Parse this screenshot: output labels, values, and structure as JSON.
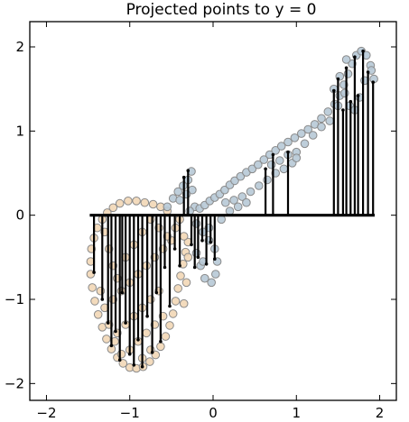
{
  "chart_data": {
    "type": "scatter",
    "title": "Projected points to y = 0",
    "xlabel": "",
    "ylabel": "",
    "xlim": [
      -2.2,
      2.2
    ],
    "ylim": [
      -2.2,
      2.3
    ],
    "x_ticks": [
      -2,
      -1,
      0,
      1,
      2
    ],
    "y_ticks": [
      -2,
      -1,
      0,
      1,
      2
    ],
    "x_tick_labels": [
      "−2",
      "−1",
      "0",
      "1",
      "2"
    ],
    "y_tick_labels": [
      "−2",
      "−1",
      "0",
      "1",
      "2"
    ],
    "grid": false,
    "projection_line_y": 0,
    "projection_range": [
      -1.48,
      1.94
    ],
    "series": [
      {
        "color": "#f2d7b6",
        "points": [
          [
            -0.55,
            0.05
          ],
          [
            -0.63,
            0.1
          ],
          [
            -0.72,
            0.13
          ],
          [
            -0.82,
            0.15
          ],
          [
            -0.92,
            0.17
          ],
          [
            -1.02,
            0.17
          ],
          [
            -1.12,
            0.14
          ],
          [
            -1.2,
            0.09
          ],
          [
            -1.27,
            0.03
          ],
          [
            -1.33,
            -0.05
          ],
          [
            -1.39,
            -0.15
          ],
          [
            -1.43,
            -0.27
          ],
          [
            -1.46,
            -0.4
          ],
          [
            -1.47,
            -0.55
          ],
          [
            -1.47,
            -0.7
          ],
          [
            -1.45,
            -0.86
          ],
          [
            -1.42,
            -1.02
          ],
          [
            -1.38,
            -1.18
          ],
          [
            -1.33,
            -1.33
          ],
          [
            -1.28,
            -1.47
          ],
          [
            -1.22,
            -1.59
          ],
          [
            -1.15,
            -1.69
          ],
          [
            -1.08,
            -1.76
          ],
          [
            -1.0,
            -1.81
          ],
          [
            -0.92,
            -1.82
          ],
          [
            -0.84,
            -1.8
          ],
          [
            -0.76,
            -1.74
          ],
          [
            -0.69,
            -1.66
          ],
          [
            -0.63,
            -1.56
          ],
          [
            -0.57,
            -1.44
          ],
          [
            -0.52,
            -1.31
          ],
          [
            -0.48,
            -1.17
          ],
          [
            -0.45,
            -1.02
          ],
          [
            -0.42,
            -0.87
          ],
          [
            -0.39,
            -0.72
          ],
          [
            -0.36,
            -0.58
          ],
          [
            -0.33,
            -0.44
          ],
          [
            -0.3,
            -0.32
          ],
          [
            -0.5,
            -0.3
          ],
          [
            -0.6,
            -0.4
          ],
          [
            -0.7,
            -0.5
          ],
          [
            -0.8,
            -0.6
          ],
          [
            -0.9,
            -0.7
          ],
          [
            -1.0,
            -0.8
          ],
          [
            -1.1,
            -0.9
          ],
          [
            -1.2,
            -1.0
          ],
          [
            -0.65,
            -0.9
          ],
          [
            -0.75,
            -1.0
          ],
          [
            -0.85,
            -1.1
          ],
          [
            -0.95,
            -1.2
          ],
          [
            -1.05,
            -1.3
          ],
          [
            -1.15,
            -1.4
          ],
          [
            -0.6,
            -1.2
          ],
          [
            -0.7,
            -1.3
          ],
          [
            -0.8,
            -1.4
          ],
          [
            -0.9,
            -1.5
          ],
          [
            -1.0,
            -1.6
          ],
          [
            -1.1,
            -1.65
          ],
          [
            -0.75,
            -1.6
          ],
          [
            -0.85,
            -1.7
          ],
          [
            -1.3,
            -0.2
          ],
          [
            -1.25,
            -0.4
          ],
          [
            -1.2,
            -0.6
          ],
          [
            -1.15,
            -0.75
          ],
          [
            -1.05,
            -0.5
          ],
          [
            -0.95,
            -0.35
          ],
          [
            -0.85,
            -0.2
          ],
          [
            -0.75,
            -0.05
          ],
          [
            -0.65,
            -0.15
          ],
          [
            -0.55,
            -0.25
          ],
          [
            -0.45,
            -0.15
          ],
          [
            -0.4,
            -0.05
          ],
          [
            -0.35,
            -0.25
          ],
          [
            -0.3,
            -0.5
          ],
          [
            -0.32,
            -0.8
          ],
          [
            -0.35,
            -1.05
          ],
          [
            -1.35,
            -0.9
          ],
          [
            -1.3,
            -1.1
          ],
          [
            -1.25,
            -1.3
          ],
          [
            -1.18,
            -1.5
          ]
        ]
      },
      {
        "color": "#b7c9d6",
        "points": [
          [
            -0.55,
            0.1
          ],
          [
            -0.48,
            0.2
          ],
          [
            -0.42,
            0.28
          ],
          [
            -0.36,
            0.35
          ],
          [
            -0.3,
            0.42
          ],
          [
            -0.26,
            0.52
          ],
          [
            -0.22,
            0.1
          ],
          [
            -0.16,
            0.08
          ],
          [
            -0.1,
            0.12
          ],
          [
            -0.04,
            0.17
          ],
          [
            0.02,
            0.21
          ],
          [
            0.08,
            0.25
          ],
          [
            0.14,
            0.3
          ],
          [
            0.2,
            0.36
          ],
          [
            0.26,
            0.41
          ],
          [
            0.33,
            0.46
          ],
          [
            0.4,
            0.51
          ],
          [
            0.47,
            0.55
          ],
          [
            0.54,
            0.6
          ],
          [
            0.61,
            0.66
          ],
          [
            0.68,
            0.72
          ],
          [
            0.75,
            0.77
          ],
          [
            0.82,
            0.82
          ],
          [
            0.9,
            0.87
          ],
          [
            0.98,
            0.92
          ],
          [
            1.06,
            0.97
          ],
          [
            1.14,
            1.02
          ],
          [
            1.22,
            1.08
          ],
          [
            1.3,
            1.15
          ],
          [
            1.38,
            1.23
          ],
          [
            1.46,
            1.32
          ],
          [
            1.52,
            1.42
          ],
          [
            1.57,
            1.55
          ],
          [
            1.62,
            1.68
          ],
          [
            1.67,
            1.8
          ],
          [
            1.72,
            1.9
          ],
          [
            1.78,
            1.95
          ],
          [
            1.84,
            1.9
          ],
          [
            1.89,
            1.78
          ],
          [
            1.93,
            1.62
          ],
          [
            1.52,
            1.65
          ],
          [
            1.58,
            1.45
          ],
          [
            1.64,
            1.3
          ],
          [
            1.7,
            1.25
          ],
          [
            1.76,
            1.4
          ],
          [
            1.82,
            1.6
          ],
          [
            1.9,
            1.72
          ],
          [
            1.6,
            1.85
          ],
          [
            1.45,
            1.5
          ],
          [
            1.5,
            1.3
          ],
          [
            1.0,
            0.75
          ],
          [
            0.95,
            0.62
          ],
          [
            0.85,
            0.55
          ],
          [
            0.75,
            0.5
          ],
          [
            0.65,
            0.42
          ],
          [
            0.55,
            0.35
          ],
          [
            0.45,
            0.28
          ],
          [
            0.35,
            0.22
          ],
          [
            0.25,
            0.18
          ],
          [
            0.15,
            0.15
          ],
          [
            -0.25,
            0.3
          ],
          [
            -0.32,
            0.25
          ],
          [
            -0.4,
            0.18
          ],
          [
            -0.28,
            0.05
          ],
          [
            -0.2,
            -0.1
          ],
          [
            -0.12,
            -0.2
          ],
          [
            -0.05,
            -0.3
          ],
          [
            0.02,
            -0.4
          ],
          [
            0.05,
            -0.55
          ],
          [
            0.03,
            -0.7
          ],
          [
            -0.02,
            -0.8
          ],
          [
            -0.1,
            -0.75
          ],
          [
            -0.15,
            -0.6
          ],
          [
            -0.2,
            -0.45
          ],
          [
            -0.12,
            -0.55
          ],
          [
            -0.05,
            -0.15
          ],
          [
            0.1,
            -0.05
          ],
          [
            0.2,
            0.05
          ],
          [
            0.3,
            0.1
          ],
          [
            0.4,
            0.15
          ],
          [
            1.1,
            0.85
          ],
          [
            1.2,
            0.95
          ],
          [
            1.3,
            1.05
          ],
          [
            1.4,
            1.12
          ],
          [
            1.0,
            0.68
          ],
          [
            0.9,
            0.72
          ],
          [
            0.8,
            0.65
          ],
          [
            0.7,
            0.6
          ]
        ]
      }
    ],
    "projection_lines": [
      [
        -1.43,
        -0.68
      ],
      [
        -1.33,
        -1.0
      ],
      [
        -1.26,
        -1.28
      ],
      [
        -1.22,
        -1.55
      ],
      [
        -1.17,
        -1.38
      ],
      [
        -1.12,
        -1.72
      ],
      [
        -1.09,
        -0.92
      ],
      [
        -1.05,
        -1.28
      ],
      [
        -1.0,
        -1.65
      ],
      [
        -0.95,
        -1.78
      ],
      [
        -0.9,
        -1.48
      ],
      [
        -0.85,
        -1.8
      ],
      [
        -0.79,
        -1.2
      ],
      [
        -0.73,
        -1.63
      ],
      [
        -0.68,
        -0.92
      ],
      [
        -0.63,
        -1.5
      ],
      [
        -0.58,
        -0.62
      ],
      [
        -0.52,
        -1.08
      ],
      [
        -0.46,
        -0.4
      ],
      [
        -0.4,
        -0.6
      ],
      [
        -0.35,
        0.45
      ],
      [
        -0.3,
        0.53
      ],
      [
        -0.26,
        -0.35
      ],
      [
        -0.22,
        -0.62
      ],
      [
        -0.18,
        -0.5
      ],
      [
        -0.13,
        -0.3
      ],
      [
        -0.08,
        -0.58
      ],
      [
        -0.03,
        -0.32
      ],
      [
        0.02,
        -0.52
      ],
      [
        0.63,
        0.55
      ],
      [
        0.72,
        0.72
      ],
      [
        0.9,
        0.75
      ],
      [
        1.45,
        1.48
      ],
      [
        1.5,
        1.62
      ],
      [
        1.56,
        1.25
      ],
      [
        1.6,
        1.75
      ],
      [
        1.65,
        1.35
      ],
      [
        1.7,
        1.88
      ],
      [
        1.74,
        1.42
      ],
      [
        1.8,
        1.95
      ],
      [
        1.86,
        1.7
      ],
      [
        1.92,
        1.58
      ]
    ]
  }
}
